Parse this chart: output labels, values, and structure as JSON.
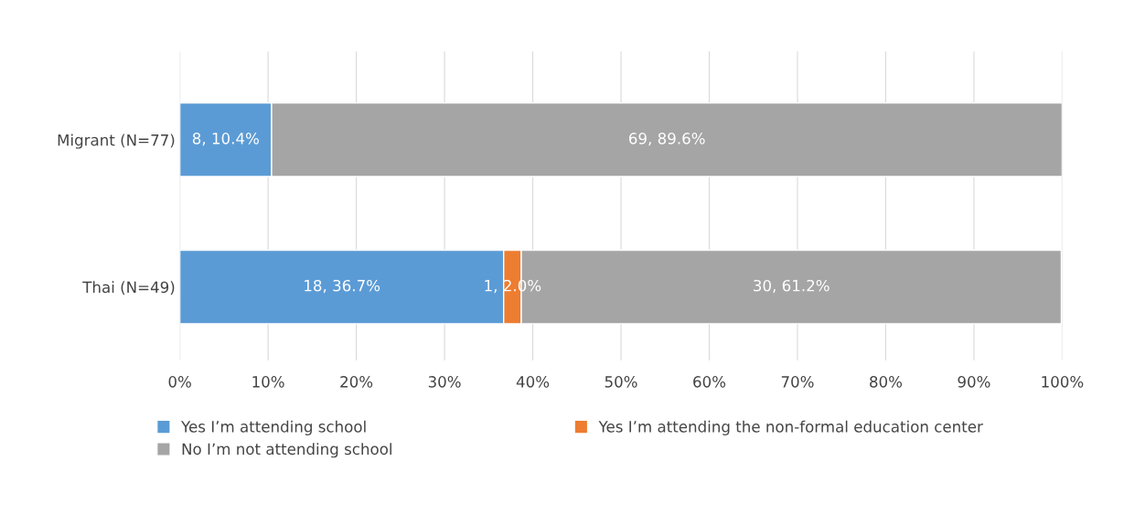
{
  "chart_data": {
    "type": "bar",
    "orientation": "horizontal",
    "stacked": true,
    "categories": [
      "Migrant (N=77)",
      "Thai (N=49)"
    ],
    "series": [
      {
        "name": "Yes I’m attending school",
        "color": "#5b9bd5",
        "values": [
          10.4,
          36.7
        ],
        "value_labels": [
          "8, 10.4%",
          "18, 36.7%"
        ]
      },
      {
        "name": "Yes I’m attending the non-formal education center",
        "color": "#ed7d31",
        "values": [
          null,
          2.0
        ],
        "value_labels": [
          null,
          "1, 2.0%"
        ]
      },
      {
        "name": "No I’m not attending school",
        "color": "#a5a5a5",
        "values": [
          89.6,
          61.2
        ],
        "value_labels": [
          "69, 89.6%",
          "30, 61.2%"
        ]
      }
    ],
    "xlim": [
      0,
      100
    ],
    "xticks": [
      {
        "value": 0,
        "label": "0%"
      },
      {
        "value": 10,
        "label": "10%"
      },
      {
        "value": 20,
        "label": "20%"
      },
      {
        "value": 30,
        "label": "30%"
      },
      {
        "value": 40,
        "label": "40%"
      },
      {
        "value": 50,
        "label": "50%"
      },
      {
        "value": 60,
        "label": "60%"
      },
      {
        "value": 70,
        "label": "70%"
      },
      {
        "value": 80,
        "label": "80%"
      },
      {
        "value": 90,
        "label": "90%"
      },
      {
        "value": 100,
        "label": "100%"
      }
    ],
    "grid": "x",
    "legend": "bottom"
  }
}
